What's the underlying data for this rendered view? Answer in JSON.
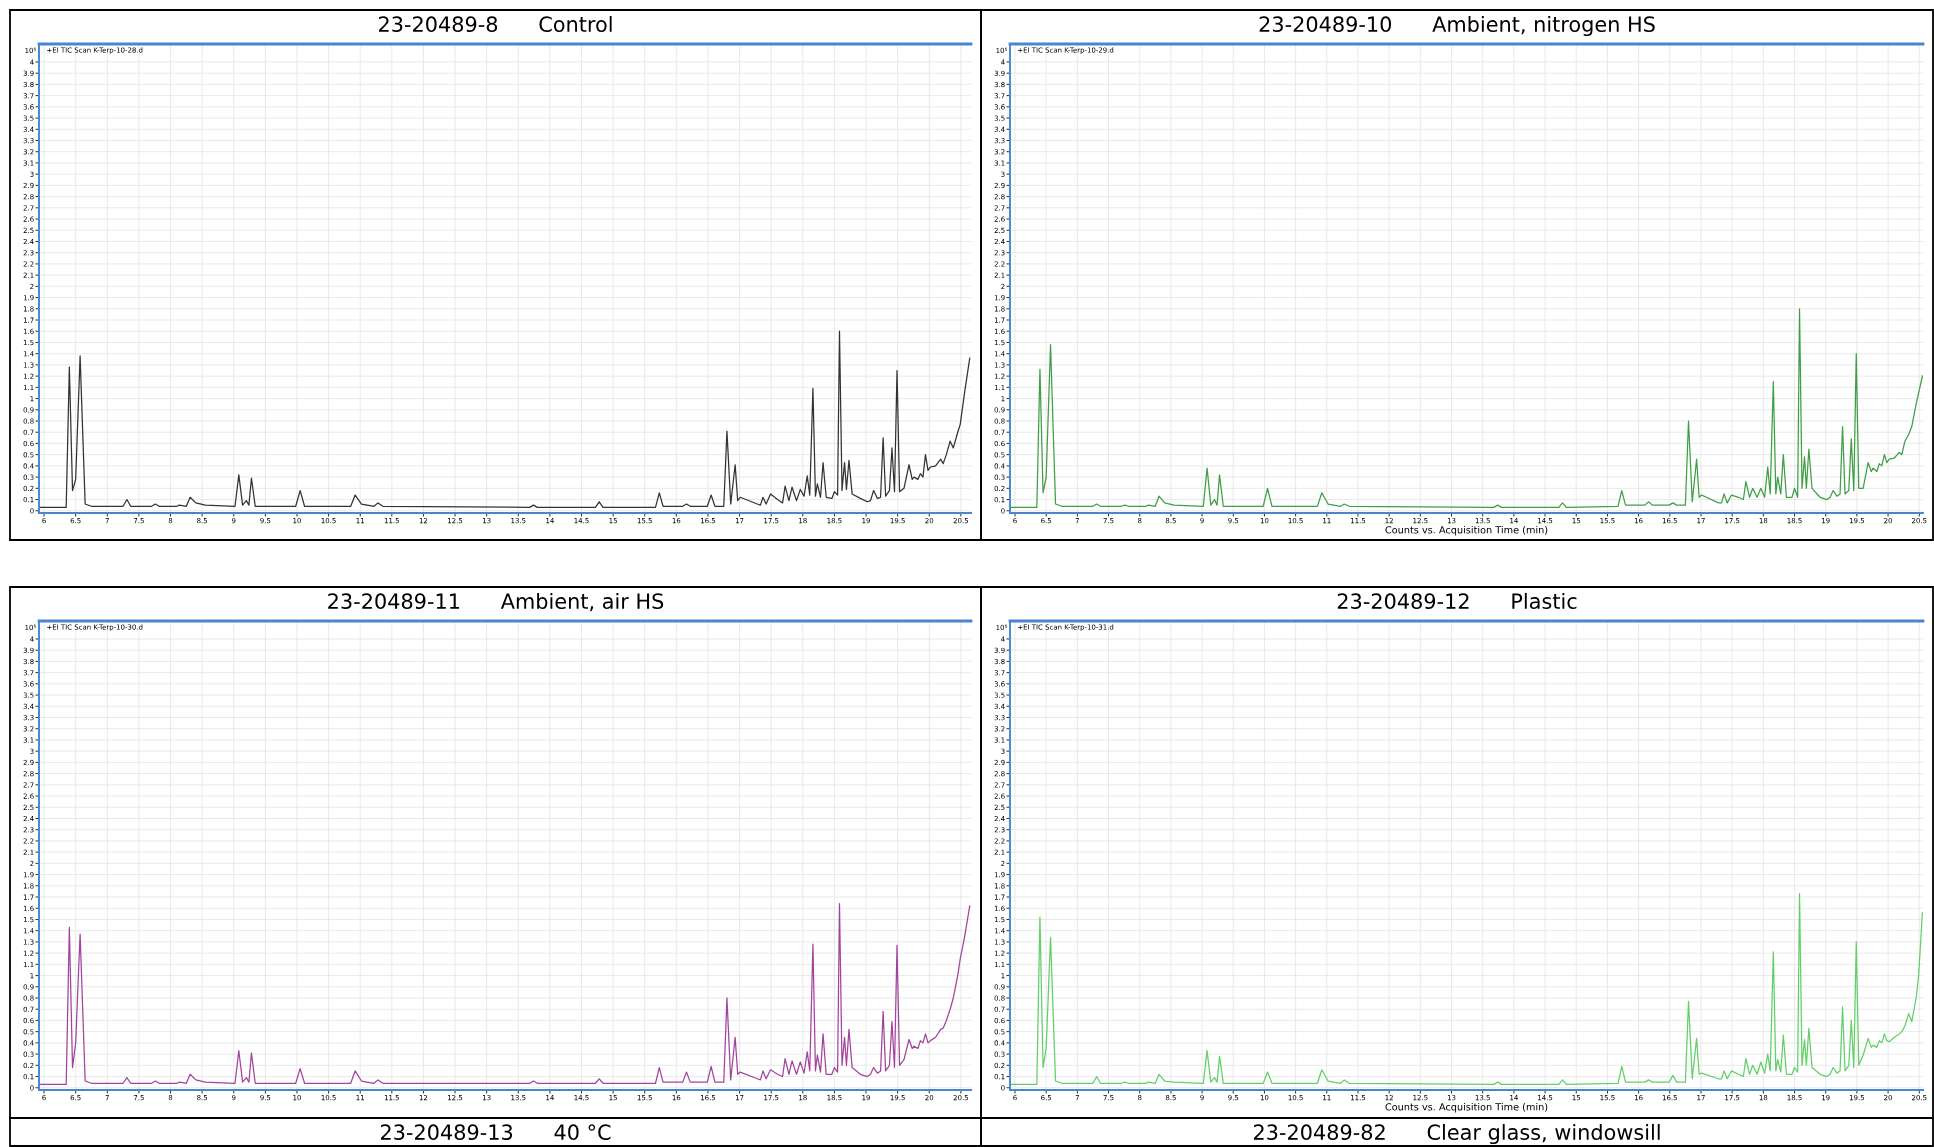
{
  "chart_data": [
    {
      "type": "line",
      "title": "23-20489-8      Control",
      "ylabel": "10⁵",
      "annotations": [
        "+EI TIC Scan K-Terp-10-28.d"
      ],
      "xlim": [
        5.92,
        20.66
      ],
      "ylim": [
        -0.02,
        4.16
      ],
      "xticks": [
        6,
        6.5,
        7,
        7.5,
        8,
        8.5,
        9,
        9.5,
        10,
        10.5,
        11,
        11.5,
        12,
        12.5,
        13,
        13.5,
        14,
        14.5,
        15,
        15.5,
        16,
        16.5,
        17,
        17.5,
        18,
        18.5,
        19,
        19.5,
        20,
        20.5
      ],
      "yticks": [
        0,
        0.1,
        0.2,
        0.3,
        0.4,
        0.5,
        0.6,
        0.7,
        0.8,
        0.9,
        1,
        1.1,
        1.2,
        1.3,
        1.4,
        1.5,
        1.6,
        1.7,
        1.8,
        1.9,
        2,
        2.1,
        2.2,
        2.3,
        2.4,
        2.5,
        2.6,
        2.7,
        2.8,
        2.9,
        3,
        3.1,
        3.2,
        3.3,
        3.4,
        3.5,
        3.6,
        3.7,
        3.8,
        3.9,
        4
      ],
      "grid": true,
      "x": [
        5.93,
        6.35,
        6.4,
        6.45,
        6.5,
        6.57,
        6.65,
        6.75,
        7.25,
        7.31,
        7.37,
        7.7,
        7.76,
        7.82,
        8.1,
        8.14,
        8.25,
        8.31,
        8.4,
        8.55,
        9.02,
        9.08,
        9.14,
        9.2,
        9.24,
        9.28,
        9.34,
        9.98,
        10.05,
        10.12,
        10.85,
        10.92,
        11.02,
        11.22,
        11.28,
        11.36,
        13.68,
        13.74,
        13.8,
        14.72,
        14.78,
        14.84,
        15.67,
        15.73,
        15.79,
        16.1,
        16.16,
        16.22,
        16.49,
        16.55,
        16.61,
        16.75,
        16.8,
        16.86,
        16.93,
        16.97,
        17.01,
        17.28,
        17.33,
        17.37,
        17.42,
        17.49,
        17.6,
        17.68,
        17.72,
        17.78,
        17.83,
        17.9,
        17.96,
        18.02,
        18.07,
        18.11,
        18.16,
        18.2,
        18.23,
        18.28,
        18.32,
        18.37,
        18.46,
        18.5,
        18.55,
        18.58,
        18.62,
        18.66,
        18.69,
        18.73,
        18.78,
        18.91,
        19.02,
        19.07,
        19.12,
        19.18,
        19.23,
        19.27,
        19.31,
        19.37,
        19.41,
        19.45,
        19.49,
        19.53,
        19.6,
        19.68,
        19.73,
        19.76,
        19.82,
        19.86,
        19.9,
        19.94,
        19.98,
        20.02,
        20.1,
        20.18,
        20.22,
        20.27,
        20.33,
        20.38,
        20.45,
        20.49,
        20.56,
        20.64
      ],
      "series": [
        {
          "color": "#333333",
          "values": [
            0.03,
            0.03,
            1.28,
            0.18,
            0.28,
            1.38,
            0.06,
            0.04,
            0.04,
            0.1,
            0.04,
            0.04,
            0.06,
            0.04,
            0.04,
            0.05,
            0.04,
            0.12,
            0.07,
            0.05,
            0.04,
            0.32,
            0.05,
            0.09,
            0.05,
            0.29,
            0.04,
            0.04,
            0.18,
            0.04,
            0.04,
            0.14,
            0.06,
            0.04,
            0.07,
            0.04,
            0.03,
            0.05,
            0.03,
            0.03,
            0.08,
            0.03,
            0.03,
            0.16,
            0.04,
            0.04,
            0.06,
            0.04,
            0.04,
            0.14,
            0.04,
            0.04,
            0.71,
            0.06,
            0.41,
            0.09,
            0.12,
            0.06,
            0.05,
            0.12,
            0.06,
            0.15,
            0.1,
            0.07,
            0.22,
            0.09,
            0.21,
            0.09,
            0.19,
            0.13,
            0.31,
            0.14,
            1.09,
            0.13,
            0.24,
            0.12,
            0.43,
            0.12,
            0.11,
            0.17,
            0.14,
            1.6,
            0.18,
            0.43,
            0.19,
            0.45,
            0.15,
            0.11,
            0.08,
            0.09,
            0.18,
            0.11,
            0.12,
            0.65,
            0.13,
            0.18,
            0.56,
            0.17,
            1.25,
            0.17,
            0.2,
            0.41,
            0.28,
            0.3,
            0.28,
            0.33,
            0.3,
            0.5,
            0.36,
            0.39,
            0.4,
            0.46,
            0.42,
            0.5,
            0.62,
            0.56,
            0.7,
            0.77,
            1.06,
            1.36
          ]
        }
      ]
    },
    {
      "type": "line",
      "title": "23-20489-10      Ambient, nitrogen HS",
      "ylabel": "10⁵",
      "xlabel": "Counts vs. Acquisition Time (min)",
      "annotations": [
        "+EI TIC Scan K-Terp-10-29.d"
      ],
      "xlim": [
        5.92,
        20.56
      ],
      "ylim": [
        -0.02,
        4.16
      ],
      "xticks": [
        6,
        6.5,
        7,
        7.5,
        8,
        8.5,
        9,
        9.5,
        10,
        10.5,
        11,
        11.5,
        12,
        12.5,
        13,
        13.5,
        14,
        14.5,
        15,
        15.5,
        16,
        16.5,
        17,
        17.5,
        18,
        18.5,
        19,
        19.5,
        20,
        20.5
      ],
      "yticks": [
        0,
        0.1,
        0.2,
        0.3,
        0.4,
        0.5,
        0.6,
        0.7,
        0.8,
        0.9,
        1,
        1.1,
        1.2,
        1.3,
        1.4,
        1.5,
        1.6,
        1.7,
        1.8,
        1.9,
        2,
        2.1,
        2.2,
        2.3,
        2.4,
        2.5,
        2.6,
        2.7,
        2.8,
        2.9,
        3,
        3.1,
        3.2,
        3.3,
        3.4,
        3.5,
        3.6,
        3.7,
        3.8,
        3.9,
        4
      ],
      "grid": true,
      "x": [
        5.93,
        6.35,
        6.4,
        6.45,
        6.5,
        6.57,
        6.65,
        6.75,
        7.25,
        7.31,
        7.37,
        7.7,
        7.76,
        7.82,
        8.1,
        8.14,
        8.25,
        8.31,
        8.4,
        8.55,
        9.02,
        9.08,
        9.14,
        9.2,
        9.24,
        9.28,
        9.34,
        9.98,
        10.05,
        10.12,
        10.85,
        10.92,
        11.02,
        11.22,
        11.28,
        11.36,
        13.68,
        13.74,
        13.8,
        14.72,
        14.78,
        14.84,
        15.67,
        15.73,
        15.79,
        16.1,
        16.16,
        16.22,
        16.49,
        16.55,
        16.61,
        16.75,
        16.8,
        16.86,
        16.93,
        16.97,
        17.01,
        17.28,
        17.33,
        17.37,
        17.42,
        17.49,
        17.6,
        17.68,
        17.72,
        17.78,
        17.83,
        17.9,
        17.96,
        18.02,
        18.07,
        18.11,
        18.16,
        18.2,
        18.23,
        18.28,
        18.32,
        18.37,
        18.46,
        18.5,
        18.55,
        18.58,
        18.62,
        18.66,
        18.69,
        18.73,
        18.78,
        18.91,
        19.02,
        19.07,
        19.12,
        19.18,
        19.23,
        19.27,
        19.31,
        19.37,
        19.41,
        19.45,
        19.49,
        19.53,
        19.6,
        19.68,
        19.73,
        19.76,
        19.82,
        19.86,
        19.9,
        19.94,
        19.98,
        20.02,
        20.1,
        20.18,
        20.22,
        20.27,
        20.33,
        20.38,
        20.45,
        20.49,
        20.55
      ],
      "series": [
        {
          "color": "#3f9f46",
          "values": [
            0.03,
            0.03,
            1.26,
            0.16,
            0.3,
            1.48,
            0.06,
            0.04,
            0.04,
            0.06,
            0.04,
            0.04,
            0.05,
            0.04,
            0.04,
            0.05,
            0.04,
            0.13,
            0.07,
            0.05,
            0.04,
            0.38,
            0.05,
            0.1,
            0.05,
            0.32,
            0.04,
            0.04,
            0.2,
            0.04,
            0.04,
            0.16,
            0.06,
            0.04,
            0.06,
            0.04,
            0.03,
            0.05,
            0.03,
            0.03,
            0.07,
            0.03,
            0.04,
            0.18,
            0.05,
            0.05,
            0.08,
            0.05,
            0.05,
            0.07,
            0.05,
            0.05,
            0.8,
            0.08,
            0.46,
            0.12,
            0.14,
            0.07,
            0.07,
            0.15,
            0.07,
            0.14,
            0.12,
            0.1,
            0.26,
            0.12,
            0.2,
            0.12,
            0.2,
            0.12,
            0.39,
            0.15,
            1.15,
            0.15,
            0.3,
            0.15,
            0.5,
            0.12,
            0.12,
            0.2,
            0.12,
            1.8,
            0.2,
            0.48,
            0.2,
            0.55,
            0.2,
            0.12,
            0.1,
            0.12,
            0.18,
            0.13,
            0.15,
            0.75,
            0.15,
            0.18,
            0.64,
            0.18,
            1.4,
            0.2,
            0.2,
            0.43,
            0.35,
            0.38,
            0.35,
            0.42,
            0.4,
            0.5,
            0.43,
            0.46,
            0.47,
            0.52,
            0.5,
            0.62,
            0.68,
            0.75,
            0.95,
            1.05,
            1.2
          ]
        }
      ]
    },
    {
      "type": "line",
      "title": "23-20489-11      Ambient, air HS",
      "ylabel": "10⁵",
      "annotations": [
        "+EI TIC Scan K-Terp-10-30.d"
      ],
      "xlim": [
        5.92,
        20.66
      ],
      "ylim": [
        -0.02,
        4.16
      ],
      "xticks": [
        6,
        6.5,
        7,
        7.5,
        8,
        8.5,
        9,
        9.5,
        10,
        10.5,
        11,
        11.5,
        12,
        12.5,
        13,
        13.5,
        14,
        14.5,
        15,
        15.5,
        16,
        16.5,
        17,
        17.5,
        18,
        18.5,
        19,
        19.5,
        20,
        20.5
      ],
      "yticks": [
        0,
        0.1,
        0.2,
        0.3,
        0.4,
        0.5,
        0.6,
        0.7,
        0.8,
        0.9,
        1,
        1.1,
        1.2,
        1.3,
        1.4,
        1.5,
        1.6,
        1.7,
        1.8,
        1.9,
        2,
        2.1,
        2.2,
        2.3,
        2.4,
        2.5,
        2.6,
        2.7,
        2.8,
        2.9,
        3,
        3.1,
        3.2,
        3.3,
        3.4,
        3.5,
        3.6,
        3.7,
        3.8,
        3.9,
        4
      ],
      "grid": true,
      "x": [
        5.93,
        6.35,
        6.4,
        6.45,
        6.5,
        6.57,
        6.65,
        6.75,
        7.25,
        7.31,
        7.37,
        7.7,
        7.76,
        7.82,
        8.1,
        8.14,
        8.25,
        8.31,
        8.4,
        8.55,
        9.02,
        9.08,
        9.14,
        9.2,
        9.24,
        9.28,
        9.34,
        9.98,
        10.05,
        10.12,
        10.85,
        10.92,
        11.02,
        11.22,
        11.28,
        11.36,
        13.68,
        13.74,
        13.8,
        14.72,
        14.78,
        14.84,
        15.67,
        15.73,
        15.79,
        16.1,
        16.16,
        16.22,
        16.49,
        16.55,
        16.61,
        16.75,
        16.8,
        16.86,
        16.93,
        16.97,
        17.01,
        17.28,
        17.33,
        17.37,
        17.42,
        17.49,
        17.6,
        17.68,
        17.72,
        17.78,
        17.83,
        17.9,
        17.96,
        18.02,
        18.07,
        18.11,
        18.16,
        18.2,
        18.23,
        18.28,
        18.32,
        18.37,
        18.46,
        18.5,
        18.55,
        18.58,
        18.62,
        18.66,
        18.69,
        18.73,
        18.78,
        18.91,
        19.02,
        19.07,
        19.12,
        19.18,
        19.23,
        19.27,
        19.31,
        19.37,
        19.41,
        19.45,
        19.49,
        19.53,
        19.6,
        19.68,
        19.73,
        19.76,
        19.82,
        19.86,
        19.9,
        19.94,
        19.98,
        20.02,
        20.1,
        20.18,
        20.22,
        20.27,
        20.33,
        20.38,
        20.45,
        20.49,
        20.56,
        20.64
      ],
      "series": [
        {
          "color": "#a2449e",
          "values": [
            0.03,
            0.03,
            1.43,
            0.18,
            0.4,
            1.37,
            0.06,
            0.04,
            0.04,
            0.09,
            0.04,
            0.04,
            0.06,
            0.04,
            0.04,
            0.05,
            0.04,
            0.12,
            0.07,
            0.05,
            0.04,
            0.33,
            0.05,
            0.09,
            0.05,
            0.31,
            0.04,
            0.04,
            0.17,
            0.04,
            0.04,
            0.15,
            0.06,
            0.04,
            0.07,
            0.04,
            0.04,
            0.06,
            0.04,
            0.04,
            0.08,
            0.04,
            0.04,
            0.18,
            0.05,
            0.05,
            0.14,
            0.05,
            0.05,
            0.19,
            0.05,
            0.05,
            0.8,
            0.07,
            0.45,
            0.12,
            0.14,
            0.08,
            0.07,
            0.15,
            0.08,
            0.16,
            0.12,
            0.1,
            0.26,
            0.12,
            0.24,
            0.12,
            0.23,
            0.13,
            0.32,
            0.15,
            1.28,
            0.15,
            0.29,
            0.14,
            0.48,
            0.12,
            0.12,
            0.18,
            0.14,
            1.64,
            0.2,
            0.45,
            0.2,
            0.52,
            0.18,
            0.12,
            0.1,
            0.12,
            0.18,
            0.13,
            0.15,
            0.68,
            0.15,
            0.2,
            0.59,
            0.18,
            1.27,
            0.2,
            0.25,
            0.43,
            0.35,
            0.37,
            0.35,
            0.42,
            0.4,
            0.48,
            0.4,
            0.42,
            0.45,
            0.52,
            0.53,
            0.6,
            0.7,
            0.8,
            1.0,
            1.15,
            1.35,
            1.62
          ]
        }
      ]
    },
    {
      "type": "line",
      "title": "23-20489-12      Plastic",
      "ylabel": "10⁵",
      "xlabel": "Counts vs. Acquisition Time (min)",
      "annotations": [
        "+EI TIC Scan K-Terp-10-31.d"
      ],
      "xlim": [
        5.92,
        20.56
      ],
      "ylim": [
        -0.02,
        4.16
      ],
      "xticks": [
        6,
        6.5,
        7,
        7.5,
        8,
        8.5,
        9,
        9.5,
        10,
        10.5,
        11,
        11.5,
        12,
        12.5,
        13,
        13.5,
        14,
        14.5,
        15,
        15.5,
        16,
        16.5,
        17,
        17.5,
        18,
        18.5,
        19,
        19.5,
        20,
        20.5
      ],
      "yticks": [
        0,
        0.1,
        0.2,
        0.3,
        0.4,
        0.5,
        0.6,
        0.7,
        0.8,
        0.9,
        1,
        1.1,
        1.2,
        1.3,
        1.4,
        1.5,
        1.6,
        1.7,
        1.8,
        1.9,
        2,
        2.1,
        2.2,
        2.3,
        2.4,
        2.5,
        2.6,
        2.7,
        2.8,
        2.9,
        3,
        3.1,
        3.2,
        3.3,
        3.4,
        3.5,
        3.6,
        3.7,
        3.8,
        3.9,
        4
      ],
      "grid": true,
      "x": [
        5.93,
        6.35,
        6.4,
        6.45,
        6.5,
        6.57,
        6.65,
        6.75,
        7.25,
        7.31,
        7.37,
        7.7,
        7.76,
        7.82,
        8.1,
        8.14,
        8.25,
        8.31,
        8.4,
        8.55,
        9.02,
        9.08,
        9.14,
        9.2,
        9.24,
        9.28,
        9.34,
        9.98,
        10.05,
        10.12,
        10.85,
        10.92,
        11.02,
        11.22,
        11.28,
        11.36,
        13.68,
        13.74,
        13.8,
        14.72,
        14.78,
        14.84,
        15.67,
        15.73,
        15.79,
        16.1,
        16.16,
        16.22,
        16.49,
        16.55,
        16.61,
        16.75,
        16.8,
        16.86,
        16.93,
        16.97,
        17.01,
        17.28,
        17.33,
        17.37,
        17.42,
        17.49,
        17.6,
        17.68,
        17.72,
        17.78,
        17.83,
        17.9,
        17.96,
        18.02,
        18.07,
        18.11,
        18.16,
        18.2,
        18.23,
        18.28,
        18.32,
        18.37,
        18.46,
        18.5,
        18.55,
        18.58,
        18.62,
        18.66,
        18.69,
        18.73,
        18.78,
        18.91,
        19.02,
        19.07,
        19.12,
        19.18,
        19.23,
        19.27,
        19.31,
        19.37,
        19.41,
        19.45,
        19.49,
        19.53,
        19.6,
        19.68,
        19.73,
        19.76,
        19.82,
        19.86,
        19.9,
        19.94,
        19.98,
        20.02,
        20.1,
        20.18,
        20.22,
        20.27,
        20.33,
        20.38,
        20.45,
        20.49,
        20.55
      ],
      "series": [
        {
          "color": "#62d068",
          "values": [
            0.03,
            0.03,
            1.52,
            0.18,
            0.35,
            1.34,
            0.06,
            0.04,
            0.04,
            0.1,
            0.04,
            0.04,
            0.05,
            0.04,
            0.04,
            0.05,
            0.04,
            0.12,
            0.06,
            0.05,
            0.04,
            0.33,
            0.05,
            0.09,
            0.05,
            0.28,
            0.04,
            0.04,
            0.14,
            0.04,
            0.04,
            0.16,
            0.06,
            0.04,
            0.07,
            0.04,
            0.03,
            0.05,
            0.03,
            0.03,
            0.07,
            0.03,
            0.04,
            0.19,
            0.05,
            0.05,
            0.07,
            0.05,
            0.05,
            0.11,
            0.05,
            0.05,
            0.77,
            0.08,
            0.44,
            0.12,
            0.13,
            0.08,
            0.08,
            0.15,
            0.08,
            0.15,
            0.12,
            0.1,
            0.26,
            0.12,
            0.2,
            0.12,
            0.23,
            0.13,
            0.3,
            0.15,
            1.21,
            0.15,
            0.25,
            0.14,
            0.47,
            0.12,
            0.12,
            0.18,
            0.14,
            1.73,
            0.2,
            0.43,
            0.2,
            0.53,
            0.18,
            0.12,
            0.1,
            0.12,
            0.18,
            0.13,
            0.15,
            0.72,
            0.15,
            0.2,
            0.6,
            0.18,
            1.3,
            0.2,
            0.29,
            0.44,
            0.36,
            0.38,
            0.36,
            0.42,
            0.4,
            0.48,
            0.42,
            0.41,
            0.45,
            0.48,
            0.5,
            0.55,
            0.66,
            0.59,
            0.8,
            1.0,
            1.56
          ]
        }
      ]
    },
    {
      "type": "other",
      "title": "23-20489-13      40 °C"
    },
    {
      "type": "other",
      "title": "23-20489-82      Clear glass, windowsill"
    }
  ]
}
